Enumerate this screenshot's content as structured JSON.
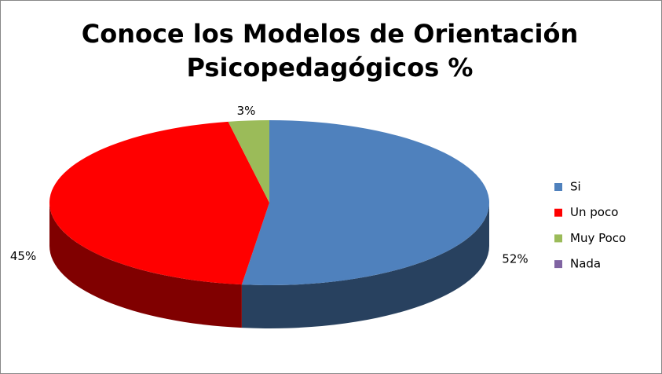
{
  "chart_data": {
    "type": "pie",
    "title": [
      "Conoce los Modelos de Orientación",
      "Psicopedagógicos %"
    ],
    "categories": [
      "Si",
      "Un poco",
      "Muy Poco",
      "Nada"
    ],
    "values": [
      52,
      45,
      3,
      0
    ],
    "value_labels": [
      "52%",
      "45%",
      "3%",
      null
    ],
    "colors": [
      "#4f81bd",
      "#ff0000",
      "#9bbb59",
      "#8064a2"
    ],
    "legend": "right"
  }
}
